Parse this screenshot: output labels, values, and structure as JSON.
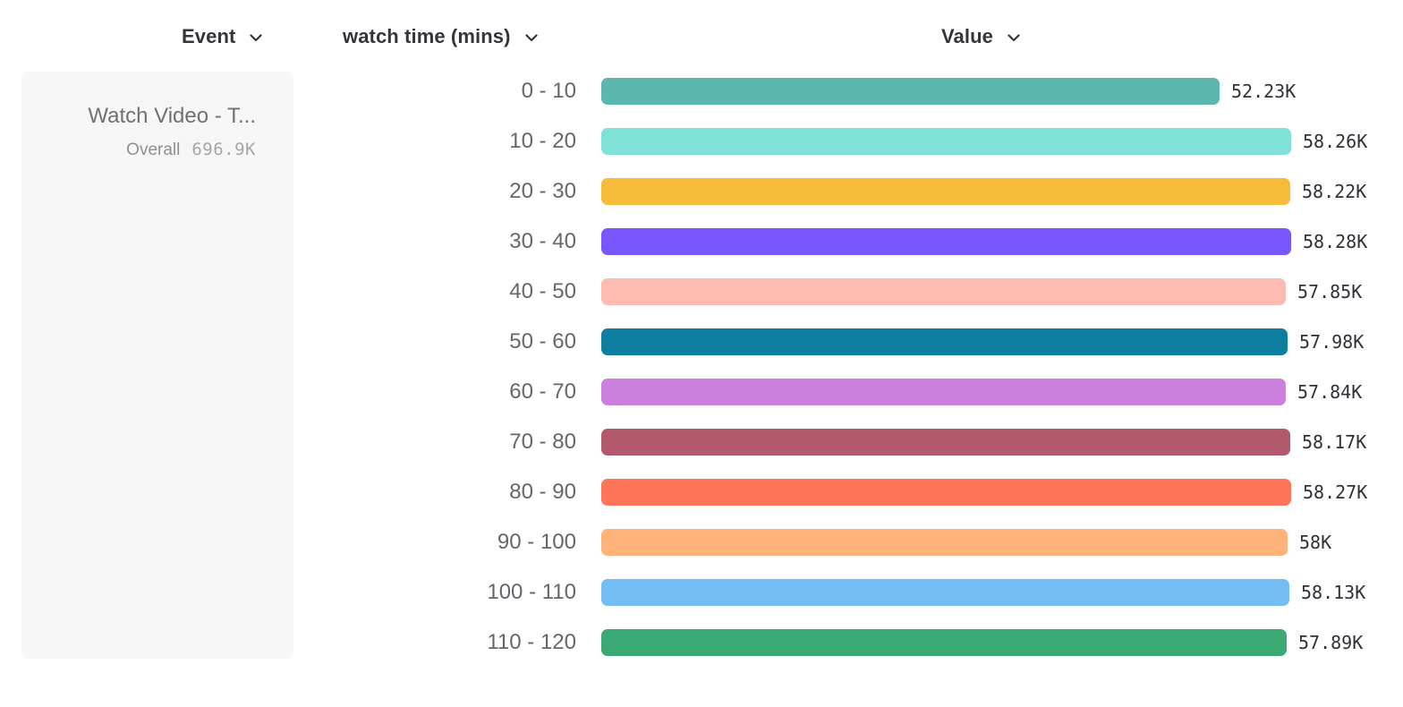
{
  "header": {
    "event_label": "Event",
    "breakdown_label": "watch time (mins)",
    "value_label": "Value"
  },
  "event_card": {
    "title": "Watch Video - T...",
    "overall_label": "Overall",
    "overall_value": "696.9K"
  },
  "chart_data": {
    "type": "bar",
    "orientation": "horizontal",
    "title": "",
    "xlabel": "",
    "ylabel": "watch time (mins)",
    "grid": false,
    "legend": false,
    "xlim": [
      0,
      58280
    ],
    "categories": [
      "0 - 10",
      "10 - 20",
      "20 - 30",
      "30 - 40",
      "40 - 50",
      "50 - 60",
      "60 - 70",
      "70 - 80",
      "80 - 90",
      "90 - 100",
      "100 - 110",
      "110 - 120"
    ],
    "values": [
      52230,
      58260,
      58220,
      58280,
      57850,
      57980,
      57840,
      58170,
      58270,
      58000,
      58130,
      57890
    ],
    "values_display": [
      "52.23K",
      "58.26K",
      "58.22K",
      "58.28K",
      "57.85K",
      "57.98K",
      "57.84K",
      "58.17K",
      "58.27K",
      "58K",
      "58.13K",
      "57.89K"
    ],
    "bar_colors": [
      "#5BB7AF",
      "#80E1D9",
      "#F8BC3B",
      "#7856FF",
      "#FEBBB2",
      "#0D7EA0",
      "#CA80DC",
      "#B2596E",
      "#FF7557",
      "#FFB27A",
      "#72BEF4",
      "#3BA974"
    ]
  },
  "colors": {
    "background": "#ffffff",
    "card_background": "#f6f6f6",
    "header_text": "#33353b",
    "category_text": "#65666c",
    "value_text": "#2f3138",
    "card_title_text": "#707176",
    "overall_label_text": "#8f9094",
    "overall_value_text": "#a5a6aa"
  }
}
